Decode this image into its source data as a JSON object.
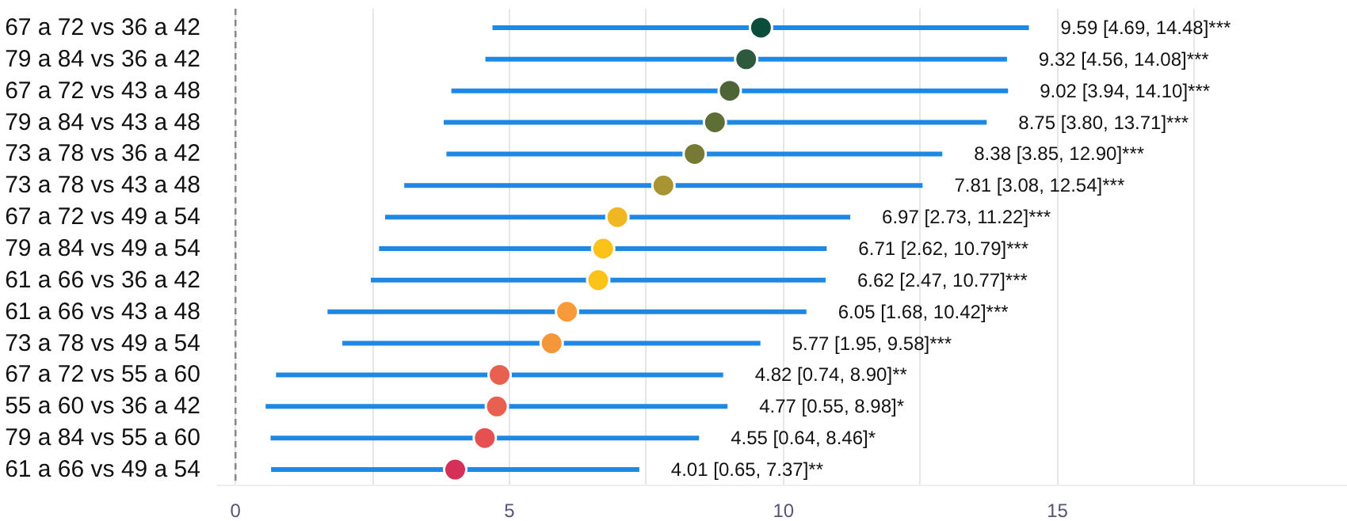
{
  "chart_data": {
    "type": "scatter",
    "orientation": "horizontal",
    "categories": [
      "67 a 72 vs 36 a 42",
      "79 a 84 vs 36 a 42",
      "67 a 72 vs 43 a 48",
      "79 a 84 vs 43 a 48",
      "73 a 78 vs 36 a 42",
      "73 a 78 vs 43 a 48",
      "67 a 72 vs 49 a 54",
      "79 a 84 vs 49 a 54",
      "61 a 66 vs 36 a 42",
      "61 a 66 vs 43 a 48",
      "73 a 78 vs 49 a 54",
      "67 a 72 vs 55 a 60",
      "55 a 60 vs 36 a 42",
      "79 a 84 vs 55 a 60",
      "61 a 66 vs 49 a 54"
    ],
    "values": [
      9.59,
      9.32,
      9.02,
      8.75,
      8.38,
      7.81,
      6.97,
      6.71,
      6.62,
      6.05,
      5.77,
      4.82,
      4.77,
      4.55,
      4.01
    ],
    "errors": [
      [
        4.69,
        14.48
      ],
      [
        4.56,
        14.08
      ],
      [
        3.94,
        14.1
      ],
      [
        3.8,
        13.71
      ],
      [
        3.85,
        12.9
      ],
      [
        3.08,
        12.54
      ],
      [
        2.73,
        11.22
      ],
      [
        2.62,
        10.79
      ],
      [
        2.47,
        10.77
      ],
      [
        1.68,
        10.42
      ],
      [
        1.95,
        9.58
      ],
      [
        0.74,
        8.9
      ],
      [
        0.55,
        8.98
      ],
      [
        0.64,
        8.46
      ],
      [
        0.65,
        7.37
      ]
    ],
    "annotations": [
      "9.59 [4.69, 14.48]***",
      "9.32 [4.56, 14.08]***",
      "9.02 [3.94, 14.10]***",
      "8.75 [3.80, 13.71]***",
      "8.38 [3.85, 12.90]***",
      "7.81 [3.08, 12.54]***",
      "6.97 [2.73, 11.22]***",
      "6.71 [2.62, 10.79]***",
      "6.62 [2.47, 10.77]***",
      "6.05 [1.68, 10.42]***",
      "5.77 [1.95, 9.58]***",
      "4.82 [0.74, 8.90]**",
      "4.77 [0.55, 8.98]*",
      "4.55 [0.64, 8.46]*",
      "4.01 [0.65, 7.37]**"
    ],
    "colors": [
      "#0b4d3b",
      "#2d5a3c",
      "#4c6436",
      "#5e6e34",
      "#777a35",
      "#a89433",
      "#f0b722",
      "#fbc21a",
      "#fbc21a",
      "#f79a3a",
      "#f4963a",
      "#e8604f",
      "#e8604f",
      "#e55050",
      "#d6305a"
    ],
    "xlim": [
      -0.35,
      20.3
    ],
    "xticks": [
      0,
      {
        "value": 2.5,
        "label": null
      },
      5,
      {
        "value": 7.5,
        "label": null
      },
      10,
      {
        "value": 12.5,
        "label": null
      },
      15,
      {
        "value": 17.5,
        "label": null
      }
    ],
    "ref_lines": [
      {
        "axis": "x",
        "value": 0,
        "label": null,
        "color": "#888888",
        "line_style": "dashed"
      }
    ],
    "grid": "x",
    "marker": "circle",
    "legend": false
  }
}
